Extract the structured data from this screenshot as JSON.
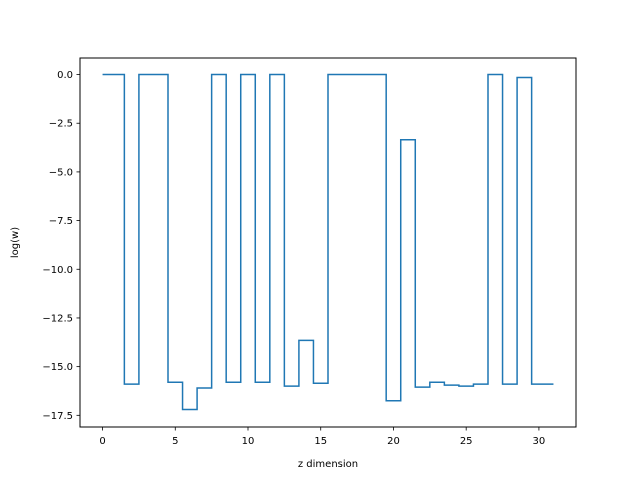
{
  "chart_data": {
    "type": "line",
    "drawstyle": "steps-mid",
    "title": "",
    "xlabel": "z dimension",
    "ylabel": "log(w)",
    "xlim": [
      -1.55,
      32.55
    ],
    "ylim": [
      -18.1,
      0.85
    ],
    "xticks": [
      0,
      5,
      10,
      15,
      20,
      25,
      30
    ],
    "xtick_labels": [
      "0",
      "5",
      "10",
      "15",
      "20",
      "25",
      "30"
    ],
    "yticks": [
      0.0,
      -2.5,
      -5.0,
      -7.5,
      -10.0,
      -12.5,
      -15.0,
      -17.5
    ],
    "ytick_labels": [
      "0.0",
      "−2.5",
      "−5.0",
      "−7.5",
      "−10.0",
      "−12.5",
      "−15.0",
      "−17.5"
    ],
    "grid": false,
    "series": [
      {
        "color": "#1f77b4",
        "x": [
          0,
          1,
          2,
          3,
          4,
          5,
          6,
          7,
          8,
          9,
          10,
          11,
          12,
          13,
          14,
          15,
          16,
          17,
          18,
          19,
          20,
          21,
          22,
          23,
          24,
          25,
          26,
          27,
          28,
          29,
          30,
          31
        ],
        "y": [
          0,
          0,
          -15.9,
          0,
          0,
          -15.8,
          -17.2,
          -16.1,
          0,
          -15.8,
          0,
          -15.8,
          0,
          -16.0,
          -13.65,
          -15.85,
          0,
          0,
          0,
          0,
          -16.75,
          -3.35,
          -16.05,
          -15.8,
          -15.95,
          -16.0,
          -15.9,
          0,
          -15.9,
          -0.15,
          -15.9,
          -15.9
        ]
      }
    ]
  }
}
